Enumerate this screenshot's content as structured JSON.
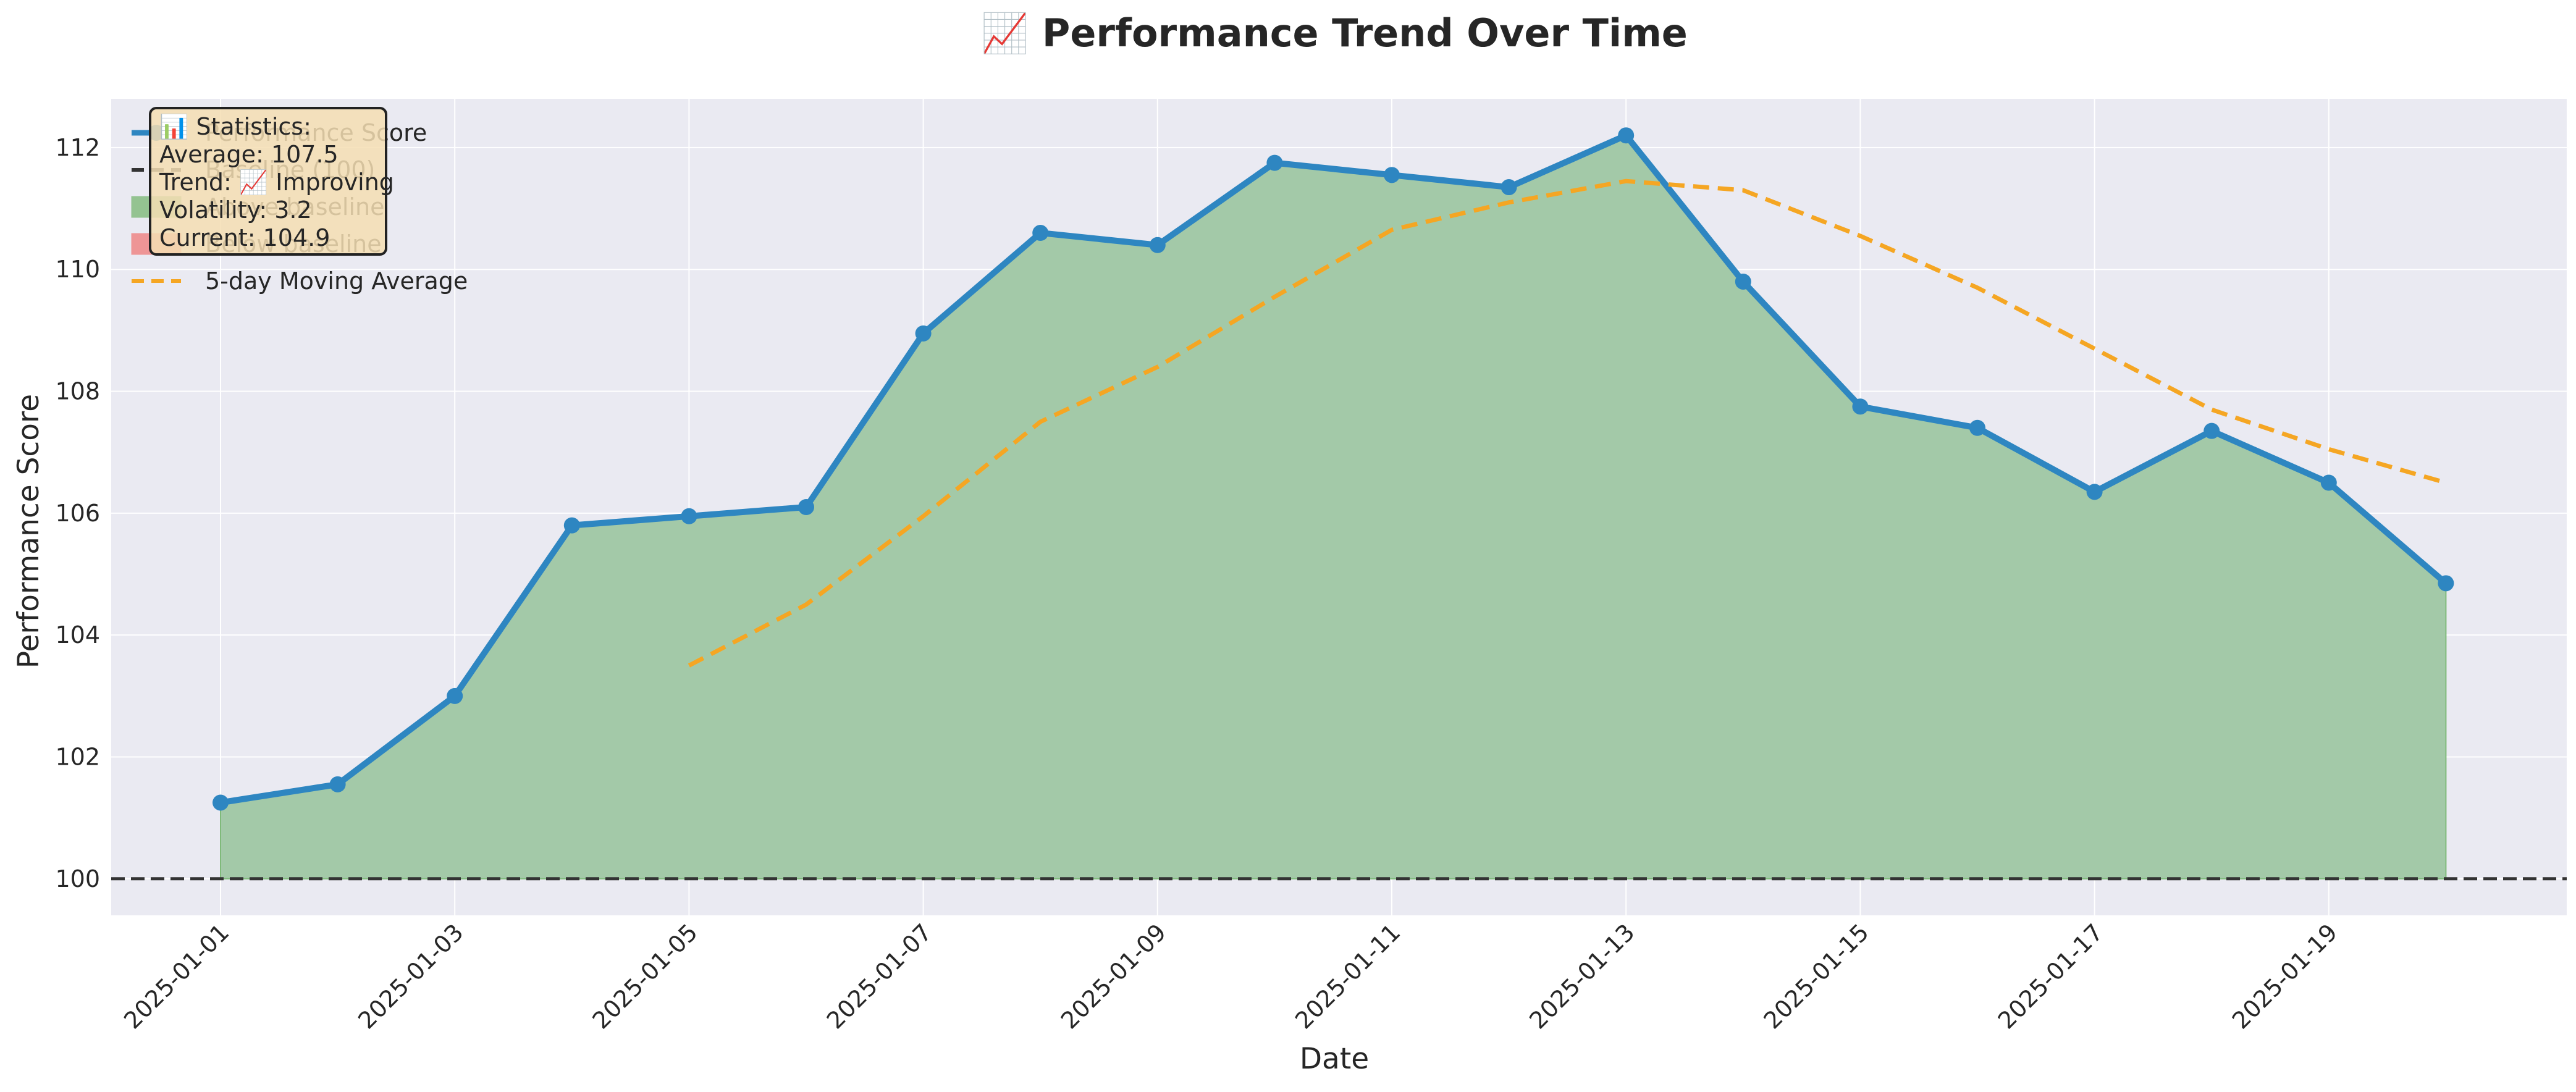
{
  "chart_data": {
    "type": "line",
    "title": "📈 Performance Trend Over Time",
    "xlabel": "Date",
    "ylabel": "Performance Score",
    "ylim": [
      99.4,
      112.8
    ],
    "y_ticks": [
      100,
      102,
      104,
      106,
      108,
      110,
      112
    ],
    "x_tick_labels": [
      "2025-01-01",
      "2025-01-03",
      "2025-01-05",
      "2025-01-07",
      "2025-01-09",
      "2025-01-11",
      "2025-01-13",
      "2025-01-15",
      "2025-01-17",
      "2025-01-19"
    ],
    "x": [
      "2025-01-01",
      "2025-01-02",
      "2025-01-03",
      "2025-01-04",
      "2025-01-05",
      "2025-01-06",
      "2025-01-07",
      "2025-01-08",
      "2025-01-09",
      "2025-01-10",
      "2025-01-11",
      "2025-01-12",
      "2025-01-13",
      "2025-01-14",
      "2025-01-15",
      "2025-01-16",
      "2025-01-17",
      "2025-01-18",
      "2025-01-19",
      "2025-01-20"
    ],
    "baseline": 100,
    "grid": true,
    "legend_position": "top-left",
    "series": [
      {
        "name": "Performance Score",
        "color": "#2e86c1",
        "values": [
          101.25,
          101.55,
          103.0,
          105.8,
          105.95,
          106.1,
          108.95,
          110.6,
          110.4,
          111.75,
          111.55,
          111.35,
          112.2,
          109.8,
          107.75,
          107.4,
          106.35,
          107.35,
          106.5,
          104.85
        ]
      },
      {
        "name": "5-day Moving Average",
        "color": "#f5a623",
        "values": [
          null,
          null,
          null,
          null,
          103.5,
          104.5,
          105.95,
          107.5,
          108.4,
          109.55,
          110.65,
          111.1,
          111.45,
          111.3,
          110.55,
          109.7,
          108.7,
          107.7,
          107.05,
          106.5
        ]
      }
    ],
    "legend": [
      {
        "label": "Performance Score",
        "kind": "line-marker",
        "color": "#2e86c1"
      },
      {
        "label": "Baseline (100)",
        "kind": "dashed",
        "color": "#333333"
      },
      {
        "label": "Above baseline",
        "kind": "patch",
        "color": "#7fba7a"
      },
      {
        "label": "Below baseline",
        "kind": "patch",
        "color": "#f08080"
      },
      {
        "label": "5-day Moving Average",
        "kind": "dashed",
        "color": "#f5a623"
      }
    ],
    "stats_box": {
      "heading": "📊 Statistics:",
      "lines": [
        "Average: 107.5",
        "Trend: 📈 Improving",
        "Volatility: 3.2",
        "Current: 104.9"
      ]
    },
    "colors": {
      "plot_bg": "#eaeaf2",
      "grid": "#ffffff",
      "fill_above": "#a3c9a8",
      "fill_below": "#f08080",
      "stats_bg": "#f5deb3"
    }
  }
}
